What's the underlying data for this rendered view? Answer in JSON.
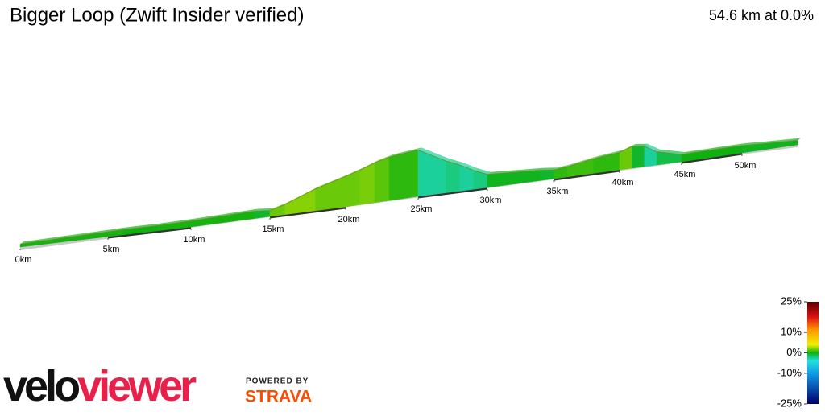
{
  "chart_data": {
    "type": "elevation-profile",
    "title": "Bigger Loop (Zwift Insider verified)",
    "summary": "54.6 km at 0.0%",
    "x": [
      0,
      2,
      4,
      6,
      8,
      10,
      12,
      14,
      15,
      16,
      17,
      18,
      19,
      20,
      21,
      22,
      23,
      24,
      25,
      26,
      27,
      28,
      29,
      30,
      32,
      34,
      35,
      36,
      38,
      39,
      40,
      41,
      42,
      43,
      44,
      45,
      47,
      50,
      52,
      54.6
    ],
    "values": [
      8,
      10,
      12,
      14,
      14,
      16,
      18,
      20,
      16,
      28,
      44,
      60,
      72,
      84,
      96,
      110,
      120,
      124,
      128,
      108,
      88,
      72,
      52,
      36,
      32,
      28,
      24,
      28,
      40,
      44,
      48,
      60,
      56,
      36,
      28,
      20,
      20,
      20,
      16,
      12
    ],
    "xlim": [
      0,
      54.6
    ],
    "xticks": [
      {
        "value": 0,
        "label": "0km"
      },
      {
        "value": 5,
        "label": "5km"
      },
      {
        "value": 10,
        "label": "10km"
      },
      {
        "value": 15,
        "label": "15km"
      },
      {
        "value": 20,
        "label": "20km"
      },
      {
        "value": 25,
        "label": "25km"
      },
      {
        "value": 30,
        "label": "30km"
      },
      {
        "value": 35,
        "label": "35km"
      },
      {
        "value": 40,
        "label": "40km"
      },
      {
        "value": 45,
        "label": "45km"
      },
      {
        "value": 50,
        "label": "50km"
      }
    ],
    "color_scale": {
      "lim": [
        -25,
        25
      ],
      "ticks": [
        {
          "value": 25,
          "label": "25%"
        },
        {
          "value": 10,
          "label": "10%"
        },
        {
          "value": 0,
          "label": "0%"
        },
        {
          "value": -10,
          "label": "-10%"
        },
        {
          "value": -25,
          "label": "-25%"
        }
      ]
    }
  },
  "branding": {
    "logo_velo": "velo",
    "logo_viewer": "viewer",
    "powered_by": "POWERED BY",
    "strava": "STRAVA"
  }
}
